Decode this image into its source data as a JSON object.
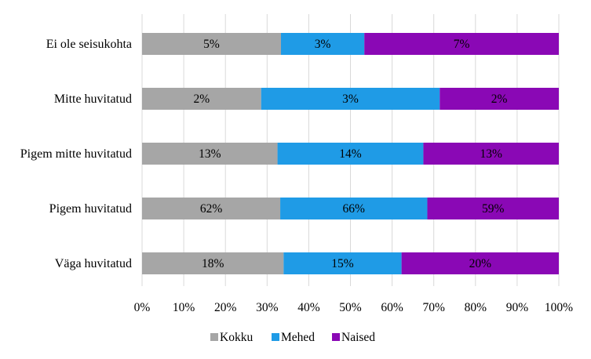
{
  "chart_data": {
    "type": "bar",
    "orientation": "horizontal",
    "stacking": "percent",
    "categories": [
      "Ei ole seisukohta",
      "Mitte huvitatud",
      "Pigem mitte huvitatud",
      "Pigem huvitatud",
      "Väga huvitatud"
    ],
    "series": [
      {
        "name": "Kokku",
        "color": "#a6a6a6",
        "values": [
          5,
          2,
          13,
          62,
          18
        ],
        "labels": [
          "5%",
          "2%",
          "13%",
          "62%",
          "18%"
        ]
      },
      {
        "name": "Mehed",
        "color": "#1f9be6",
        "values": [
          3,
          3,
          14,
          66,
          15
        ],
        "labels": [
          "3%",
          "3%",
          "14%",
          "66%",
          "15%"
        ]
      },
      {
        "name": "Naised",
        "color": "#8a08b5",
        "values": [
          7,
          2,
          13,
          59,
          20
        ],
        "labels": [
          "7%",
          "2%",
          "13%",
          "59%",
          "20%"
        ]
      }
    ],
    "x_ticks": [
      "0%",
      "10%",
      "20%",
      "30%",
      "40%",
      "50%",
      "60%",
      "70%",
      "80%",
      "90%",
      "100%"
    ],
    "xlim": [
      0,
      100
    ],
    "grid": true,
    "legend_position": "bottom"
  }
}
